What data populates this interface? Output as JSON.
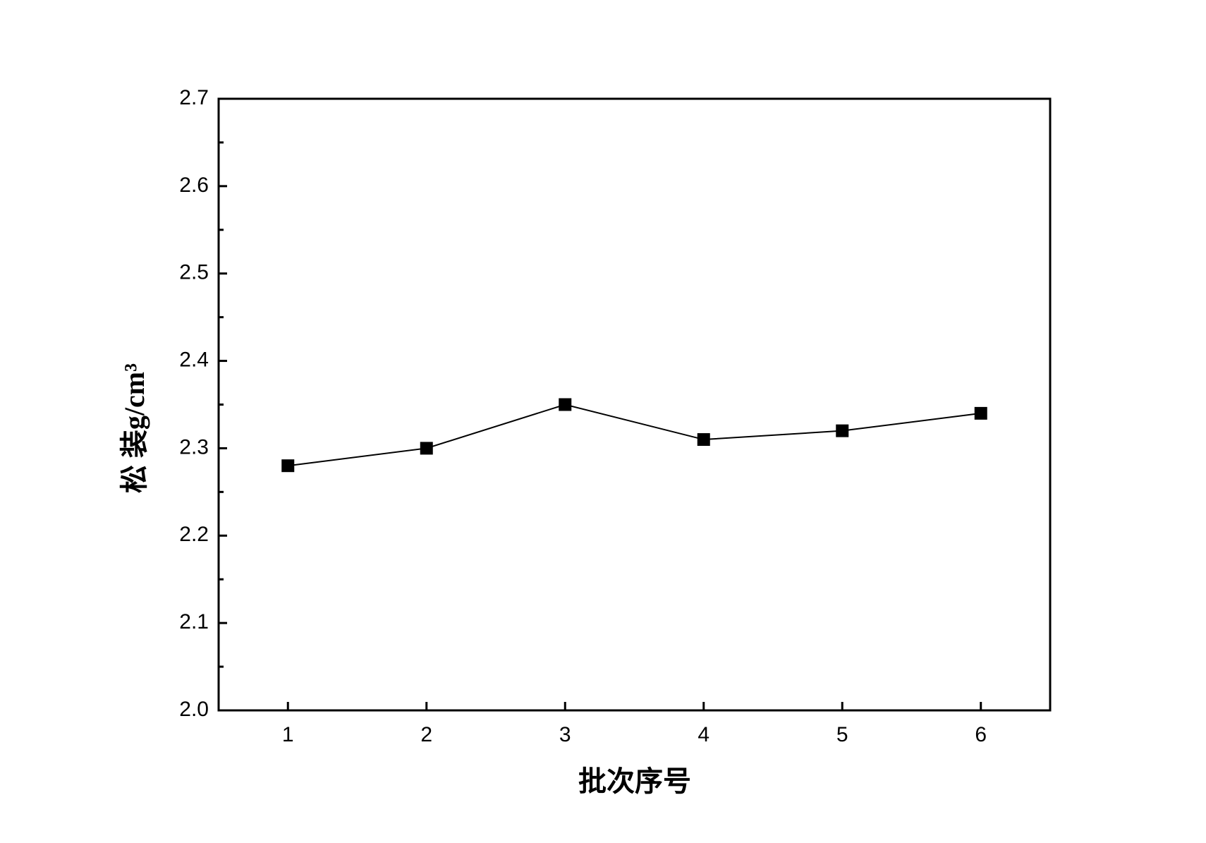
{
  "chart_data": {
    "type": "line",
    "xlabel": "批次序号",
    "ylabel": "松 装g/cm³",
    "x": [
      1,
      2,
      3,
      4,
      5,
      6
    ],
    "series": [
      {
        "color": "#000000",
        "marker": "square",
        "values": [
          2.28,
          2.3,
          2.35,
          2.31,
          2.32,
          2.34
        ]
      }
    ],
    "xlim": [
      0.5,
      6.5
    ],
    "xticks": [
      1,
      2,
      3,
      4,
      5,
      6
    ],
    "ylim": [
      2.0,
      2.7
    ],
    "yticks": [
      {
        "value": 2.0,
        "label": "2.0"
      },
      2.1,
      2.2,
      2.3,
      2.4,
      2.5,
      2.6,
      2.7
    ],
    "yminorticks": [
      2.05,
      2.15,
      2.25,
      2.35,
      2.45,
      2.55,
      2.65
    ],
    "grid": false
  }
}
